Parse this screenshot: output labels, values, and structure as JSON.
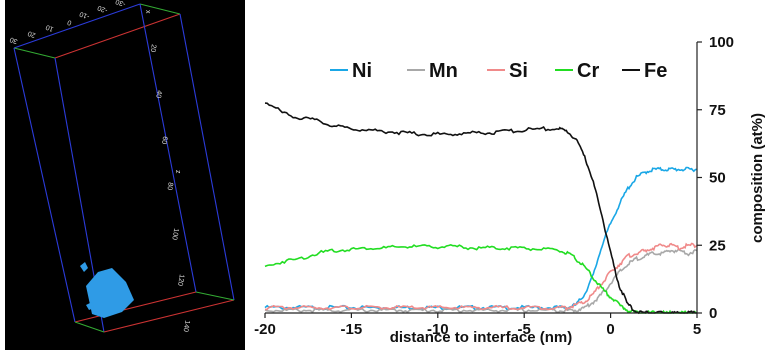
{
  "apt_panel": {
    "top_axis_ticks": [
      "30",
      "20",
      "10",
      "0",
      "-10",
      "-20",
      "-30"
    ],
    "top_axis_label": "x",
    "right_axis_ticks": [
      "20",
      "40",
      "60",
      "80",
      "100",
      "120",
      "140"
    ],
    "right_axis_label": "z",
    "frame_color": "#2b3bd9",
    "particle_color": "#2f9be6"
  },
  "chart_data": {
    "type": "line",
    "xlabel": "distance to interface (nm)",
    "ylabel": "composition (at%)",
    "xlim": [
      -20,
      5
    ],
    "ylim": [
      0,
      100
    ],
    "x_ticks": [
      "-20",
      "-15",
      "-10",
      "-5",
      "0",
      "5"
    ],
    "y_ticks": [
      "0",
      "25",
      "50",
      "75",
      "100"
    ],
    "x": [
      -20,
      -19,
      -18,
      -17,
      -16,
      -15,
      -14,
      -13,
      -12,
      -11,
      -10,
      -9,
      -8,
      -7,
      -6,
      -5,
      -4,
      -3,
      -2.5,
      -2,
      -1.5,
      -1,
      -0.5,
      0,
      0.5,
      1,
      1.5,
      2,
      2.5,
      3,
      3.5,
      4,
      4.5,
      5
    ],
    "series": [
      {
        "name": "Ni",
        "color": "#1aa7e6",
        "values": [
          2,
          2,
          2,
          2,
          2,
          2,
          2,
          2,
          2,
          2,
          2,
          2,
          2,
          2,
          2,
          2,
          2,
          2,
          2,
          3,
          7,
          14,
          25,
          33,
          40,
          46,
          50,
          52,
          53,
          53,
          53,
          53,
          53,
          53
        ]
      },
      {
        "name": "Mn",
        "color": "#a8a8a8",
        "values": [
          1,
          1,
          1,
          1,
          1,
          1,
          1,
          1,
          1,
          1,
          1,
          1,
          1,
          1,
          1,
          1,
          1,
          1,
          1,
          1,
          2,
          4,
          7,
          11,
          15,
          18,
          20,
          21,
          22,
          22,
          23,
          23,
          22,
          23
        ]
      },
      {
        "name": "Si",
        "color": "#f08a8a",
        "values": [
          2,
          2,
          2,
          2,
          2,
          2,
          2,
          2,
          2,
          2,
          2,
          2,
          2,
          2,
          2,
          2,
          2,
          2,
          2,
          3,
          4,
          7,
          11,
          15,
          18,
          21,
          22,
          23,
          24,
          25,
          25,
          24,
          25,
          25
        ]
      },
      {
        "name": "Cr",
        "color": "#22dd22",
        "values": [
          17,
          19,
          20,
          22,
          23,
          23.5,
          24,
          24,
          24.5,
          24.5,
          24.5,
          24.5,
          24,
          24,
          24,
          24,
          23.5,
          23,
          22,
          20,
          17,
          13,
          9,
          6,
          3,
          1,
          0,
          0,
          0,
          0,
          0,
          0,
          0,
          0
        ]
      },
      {
        "name": "Fe",
        "color": "#111111",
        "values": [
          78,
          74,
          72,
          71,
          69,
          68,
          67.5,
          67,
          66.5,
          66,
          66,
          66,
          66.5,
          66.5,
          67,
          67.5,
          68,
          68,
          67,
          64,
          58,
          48,
          36,
          22,
          10,
          3,
          0.5,
          0,
          0,
          0,
          0,
          0,
          0,
          0
        ]
      }
    ],
    "legend_position": "top",
    "grid": false
  }
}
